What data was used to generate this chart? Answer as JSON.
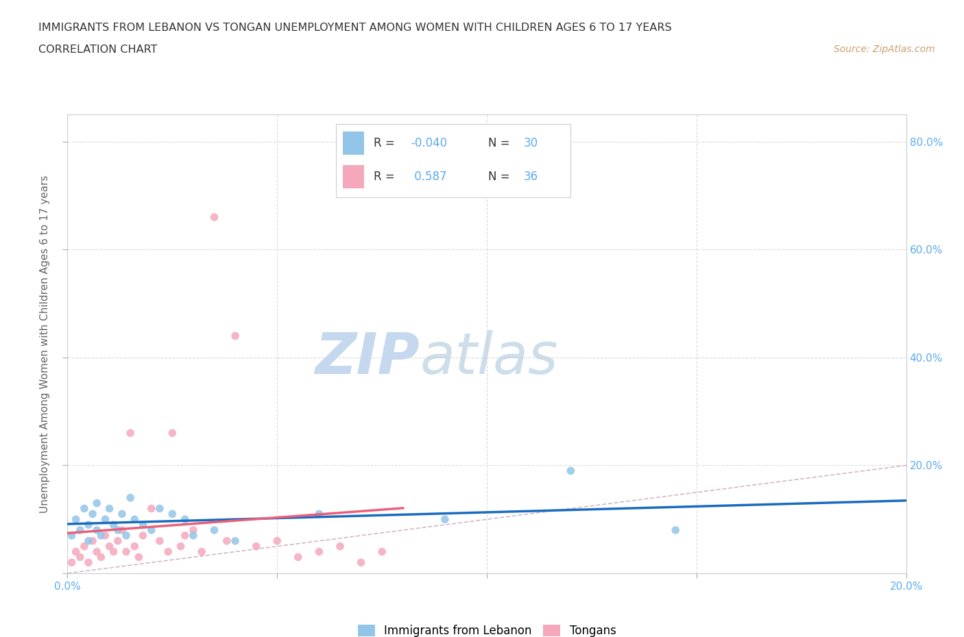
{
  "title_line1": "IMMIGRANTS FROM LEBANON VS TONGAN UNEMPLOYMENT AMONG WOMEN WITH CHILDREN AGES 6 TO 17 YEARS",
  "title_line2": "CORRELATION CHART",
  "source_text": "Source: ZipAtlas.com",
  "ylabel": "Unemployment Among Women with Children Ages 6 to 17 years",
  "xlim": [
    0.0,
    0.2
  ],
  "ylim": [
    0.0,
    0.85
  ],
  "xticks": [
    0.0,
    0.05,
    0.1,
    0.15,
    0.2
  ],
  "yticks": [
    0.0,
    0.2,
    0.4,
    0.6,
    0.8
  ],
  "lebanon_R": -0.04,
  "lebanon_N": 30,
  "tongan_R": 0.587,
  "tongan_N": 36,
  "lebanon_color": "#92c5e8",
  "tongan_color": "#f5a8bc",
  "lebanon_line_color": "#1a6bbf",
  "tongan_line_color": "#e8607a",
  "diagonal_color": "#d0b8c8",
  "watermark_text": "ZIPatlas",
  "watermark_color": "#dce8f5",
  "background_color": "#ffffff",
  "grid_color": "#d8d8d8",
  "label_color": "#5aabf0",
  "legend_text_color": "#333333",
  "source_color": "#c8a070",
  "title_color": "#333333",
  "lebanon_x": [
    0.001,
    0.002,
    0.003,
    0.004,
    0.005,
    0.005,
    0.006,
    0.007,
    0.007,
    0.008,
    0.009,
    0.01,
    0.011,
    0.012,
    0.013,
    0.014,
    0.015,
    0.016,
    0.018,
    0.02,
    0.022,
    0.025,
    0.028,
    0.03,
    0.035,
    0.04,
    0.06,
    0.09,
    0.12,
    0.145
  ],
  "lebanon_y": [
    0.07,
    0.1,
    0.08,
    0.12,
    0.06,
    0.09,
    0.11,
    0.08,
    0.13,
    0.07,
    0.1,
    0.12,
    0.09,
    0.08,
    0.11,
    0.07,
    0.14,
    0.1,
    0.09,
    0.08,
    0.12,
    0.11,
    0.1,
    0.07,
    0.08,
    0.06,
    0.11,
    0.1,
    0.19,
    0.08
  ],
  "tongan_x": [
    0.001,
    0.002,
    0.003,
    0.004,
    0.005,
    0.006,
    0.007,
    0.008,
    0.009,
    0.01,
    0.011,
    0.012,
    0.013,
    0.014,
    0.015,
    0.016,
    0.017,
    0.018,
    0.02,
    0.022,
    0.024,
    0.025,
    0.027,
    0.028,
    0.03,
    0.032,
    0.035,
    0.038,
    0.04,
    0.045,
    0.05,
    0.055,
    0.06,
    0.065,
    0.07,
    0.075
  ],
  "tongan_y": [
    0.02,
    0.04,
    0.03,
    0.05,
    0.02,
    0.06,
    0.04,
    0.03,
    0.07,
    0.05,
    0.04,
    0.06,
    0.08,
    0.04,
    0.26,
    0.05,
    0.03,
    0.07,
    0.12,
    0.06,
    0.04,
    0.26,
    0.05,
    0.07,
    0.08,
    0.04,
    0.66,
    0.06,
    0.44,
    0.05,
    0.06,
    0.03,
    0.04,
    0.05,
    0.02,
    0.04
  ]
}
